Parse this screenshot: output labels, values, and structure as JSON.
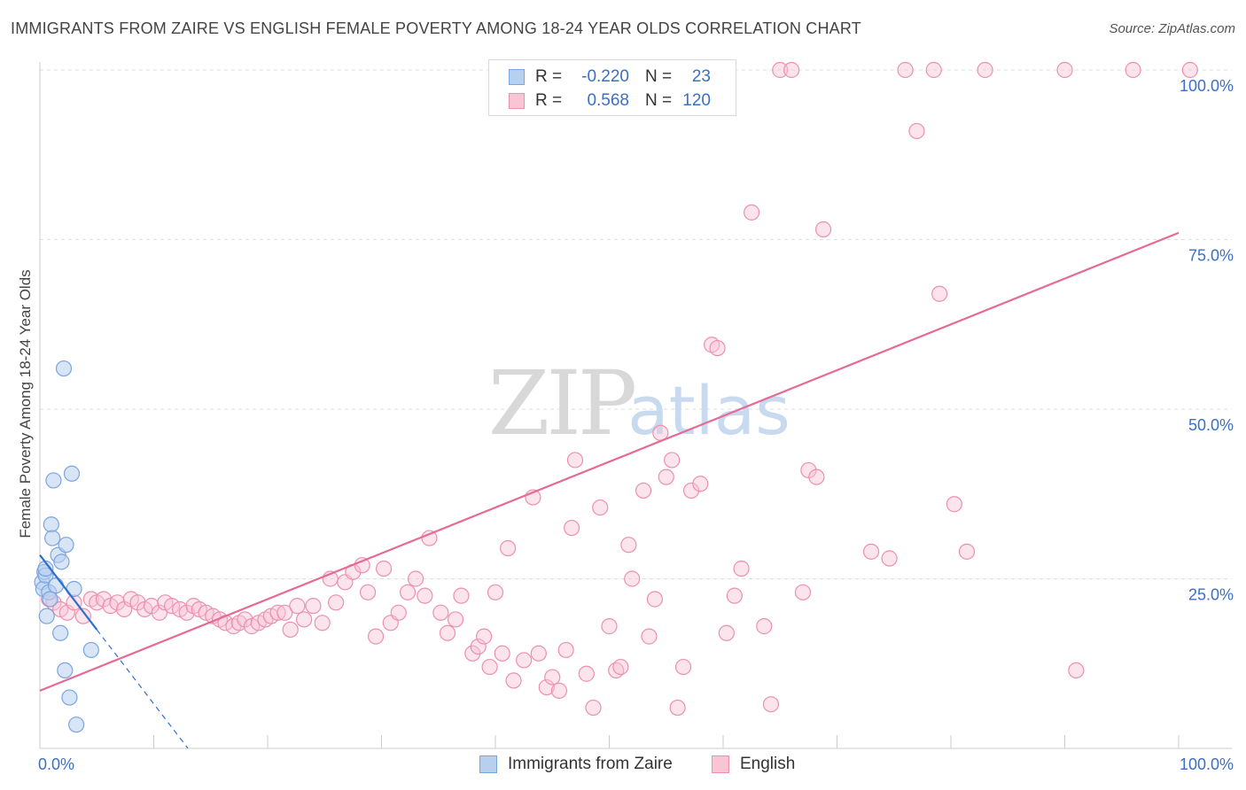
{
  "header": {
    "title": "IMMIGRANTS FROM ZAIRE VS ENGLISH FEMALE POVERTY AMONG 18-24 YEAR OLDS CORRELATION CHART",
    "source": "Source: ZipAtlas.com"
  },
  "watermark": {
    "zip": "ZIP",
    "atlas": "atlas"
  },
  "legend": {
    "r_label": "R =",
    "n_label": "N =",
    "series": [
      {
        "name": "Immigrants from Zaire",
        "r": "-0.220",
        "n": "23"
      },
      {
        "name": "English",
        "r": "0.568",
        "n": "120"
      }
    ]
  },
  "colors": {
    "zaire_fill": "#b8d0f0",
    "zaire_stroke": "#7aa5e0",
    "zaire_line": "#2f6fd0",
    "english_fill": "#f9c4d4",
    "english_stroke": "#ee8fae",
    "english_line": "#e56a96",
    "tick_label": "#3b6fc4",
    "grid": "#dddddd"
  },
  "chart_data": {
    "type": "scatter",
    "title": "IMMIGRANTS FROM ZAIRE VS ENGLISH FEMALE POVERTY AMONG 18-24 YEAR OLDS CORRELATION CHART",
    "xlabel": "",
    "ylabel": "Female Poverty Among 18-24 Year Olds",
    "xlim": [
      0,
      100
    ],
    "ylim": [
      0,
      102
    ],
    "x_tick_labels": [
      "0.0%",
      "100.0%"
    ],
    "y_ticks": [
      25,
      50,
      75,
      100
    ],
    "y_tick_labels": [
      "25.0%",
      "50.0%",
      "75.0%",
      "100.0%"
    ],
    "series": [
      {
        "name": "Immigrants from Zaire",
        "r": -0.22,
        "n": 23,
        "trend": {
          "x0": 0,
          "y0": 28.5,
          "x1": 5,
          "y1": 17.5,
          "dash_to_x": 13,
          "dash_to_y": 0
        },
        "points": [
          [
            0.2,
            24.5
          ],
          [
            0.3,
            23.5
          ],
          [
            0.4,
            26
          ],
          [
            0.5,
            25.5
          ],
          [
            0.6,
            19.5
          ],
          [
            0.8,
            23
          ],
          [
            0.9,
            22
          ],
          [
            1.0,
            33
          ],
          [
            1.1,
            31
          ],
          [
            1.2,
            39.5
          ],
          [
            1.4,
            24
          ],
          [
            1.6,
            28.5
          ],
          [
            1.8,
            17
          ],
          [
            1.9,
            27.5
          ],
          [
            2.1,
            56
          ],
          [
            2.2,
            11.5
          ],
          [
            2.3,
            30
          ],
          [
            2.6,
            7.5
          ],
          [
            2.8,
            40.5
          ],
          [
            3.0,
            23.5
          ],
          [
            3.2,
            3.5
          ],
          [
            4.5,
            14.5
          ],
          [
            0.5,
            26.5
          ]
        ]
      },
      {
        "name": "English",
        "r": 0.568,
        "n": 120,
        "trend": {
          "x0": 0,
          "y0": 8.5,
          "x1": 100,
          "y1": 76
        },
        "points": [
          [
            0.8,
            22
          ],
          [
            1.2,
            21.5
          ],
          [
            1.8,
            20.5
          ],
          [
            2.4,
            20
          ],
          [
            3,
            21.5
          ],
          [
            3.8,
            19.5
          ],
          [
            4.5,
            22
          ],
          [
            5,
            21.5
          ],
          [
            5.6,
            22
          ],
          [
            6.2,
            21
          ],
          [
            6.8,
            21.5
          ],
          [
            7.4,
            20.5
          ],
          [
            8,
            22
          ],
          [
            8.6,
            21.5
          ],
          [
            9.2,
            20.5
          ],
          [
            9.8,
            21
          ],
          [
            10.5,
            20
          ],
          [
            11,
            21.5
          ],
          [
            11.6,
            21
          ],
          [
            12.3,
            20.5
          ],
          [
            12.9,
            20
          ],
          [
            13.5,
            21
          ],
          [
            14,
            20.5
          ],
          [
            14.6,
            20
          ],
          [
            15.2,
            19.5
          ],
          [
            15.8,
            19
          ],
          [
            16.3,
            18.5
          ],
          [
            17,
            18
          ],
          [
            17.5,
            18.5
          ],
          [
            18,
            19
          ],
          [
            18.6,
            18
          ],
          [
            19.2,
            18.5
          ],
          [
            19.8,
            19
          ],
          [
            20.3,
            19.5
          ],
          [
            20.9,
            20
          ],
          [
            21.5,
            20
          ],
          [
            22,
            17.5
          ],
          [
            22.6,
            21
          ],
          [
            23.2,
            19
          ],
          [
            24,
            21
          ],
          [
            24.8,
            18.5
          ],
          [
            25.5,
            25
          ],
          [
            26,
            21.5
          ],
          [
            26.8,
            24.5
          ],
          [
            27.5,
            26
          ],
          [
            28.3,
            27
          ],
          [
            28.8,
            23
          ],
          [
            29.5,
            16.5
          ],
          [
            30.2,
            26.5
          ],
          [
            30.8,
            18.5
          ],
          [
            31.5,
            20
          ],
          [
            32.3,
            23
          ],
          [
            33,
            25
          ],
          [
            33.8,
            22.5
          ],
          [
            34.2,
            31
          ],
          [
            35.2,
            20
          ],
          [
            35.8,
            17
          ],
          [
            36.5,
            19
          ],
          [
            37,
            22.5
          ],
          [
            38,
            14
          ],
          [
            38.5,
            15
          ],
          [
            39,
            16.5
          ],
          [
            39.5,
            12
          ],
          [
            40,
            23
          ],
          [
            40.6,
            14
          ],
          [
            41.1,
            29.5
          ],
          [
            41.6,
            10
          ],
          [
            42.5,
            13
          ],
          [
            43.3,
            37
          ],
          [
            43.8,
            14
          ],
          [
            44.5,
            9
          ],
          [
            45,
            10.5
          ],
          [
            45.6,
            8.5
          ],
          [
            46.2,
            14.5
          ],
          [
            46.7,
            32.5
          ],
          [
            47,
            42.5
          ],
          [
            48,
            11
          ],
          [
            48.6,
            6
          ],
          [
            49.2,
            35.5
          ],
          [
            50,
            18
          ],
          [
            50.6,
            11.5
          ],
          [
            51,
            12
          ],
          [
            51.7,
            30
          ],
          [
            52,
            25
          ],
          [
            53,
            38
          ],
          [
            53.5,
            16.5
          ],
          [
            54,
            22
          ],
          [
            54.5,
            46.5
          ],
          [
            55,
            40
          ],
          [
            55.5,
            42.5
          ],
          [
            56,
            6
          ],
          [
            56.5,
            12
          ],
          [
            57.2,
            38
          ],
          [
            58,
            39
          ],
          [
            59,
            59.5
          ],
          [
            59.5,
            59
          ],
          [
            60.3,
            17
          ],
          [
            61,
            22.5
          ],
          [
            61.6,
            26.5
          ],
          [
            62.5,
            79
          ],
          [
            63.6,
            18
          ],
          [
            64.2,
            6.5
          ],
          [
            67,
            23
          ],
          [
            67.5,
            41
          ],
          [
            68.2,
            40
          ],
          [
            68.8,
            76.5
          ],
          [
            73,
            29
          ],
          [
            74.6,
            28
          ],
          [
            77,
            91
          ],
          [
            78.5,
            100
          ],
          [
            79,
            67
          ],
          [
            80.3,
            36
          ],
          [
            81.4,
            29
          ],
          [
            91,
            11.5
          ],
          [
            83,
            100
          ],
          [
            90,
            100
          ],
          [
            96,
            100
          ],
          [
            101,
            100
          ],
          [
            65,
            100
          ],
          [
            66,
            100
          ],
          [
            76,
            100
          ]
        ]
      }
    ]
  }
}
